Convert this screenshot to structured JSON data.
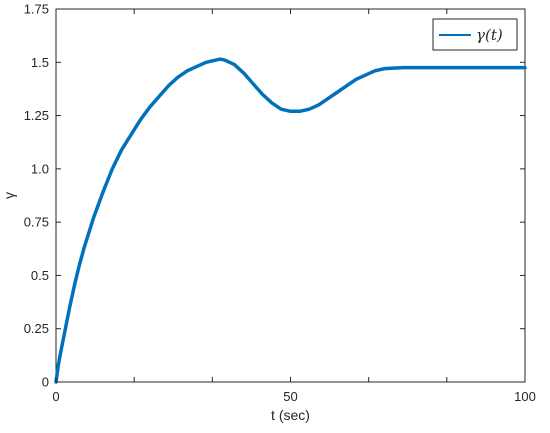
{
  "chart_data": {
    "type": "line",
    "title": "",
    "xlabel": "t (sec)",
    "ylabel": "γ",
    "xlim": [
      0,
      100
    ],
    "ylim": [
      0,
      1.75
    ],
    "x_ticks": [
      0,
      50,
      100
    ],
    "x_tick_labels": [
      "0",
      "50",
      "100"
    ],
    "x_minor_ticks": [
      16.67,
      33.33,
      66.67,
      83.33
    ],
    "y_ticks": [
      0,
      0.25,
      0.5,
      0.75,
      1.0,
      1.25,
      1.5,
      1.75
    ],
    "y_tick_labels": [
      "0",
      "0.25",
      "0.5",
      "0.75",
      "1.0",
      "1.25",
      "1.5",
      "1.75"
    ],
    "grid": false,
    "legend_position": "top-right",
    "colors": {
      "series": "#0072BD",
      "axes": "#262626"
    },
    "series": [
      {
        "name": "γ(t)",
        "x": [
          0,
          0.5,
          1,
          2,
          3,
          4,
          5,
          6,
          8,
          10,
          12,
          14,
          16,
          18,
          20,
          22,
          24,
          26,
          28,
          30,
          32,
          34,
          35,
          36,
          37,
          38,
          40,
          42,
          44,
          46,
          48,
          50,
          52,
          54,
          56,
          58,
          60,
          62,
          64,
          66,
          68,
          70,
          74,
          78,
          85,
          100
        ],
        "y": [
          0.0,
          0.08,
          0.14,
          0.25,
          0.36,
          0.46,
          0.55,
          0.63,
          0.77,
          0.89,
          1.0,
          1.09,
          1.16,
          1.23,
          1.29,
          1.34,
          1.39,
          1.43,
          1.46,
          1.48,
          1.5,
          1.51,
          1.515,
          1.51,
          1.5,
          1.49,
          1.45,
          1.4,
          1.35,
          1.31,
          1.28,
          1.27,
          1.27,
          1.28,
          1.3,
          1.33,
          1.36,
          1.39,
          1.42,
          1.44,
          1.46,
          1.47,
          1.475,
          1.475,
          1.475,
          1.475
        ]
      }
    ]
  }
}
